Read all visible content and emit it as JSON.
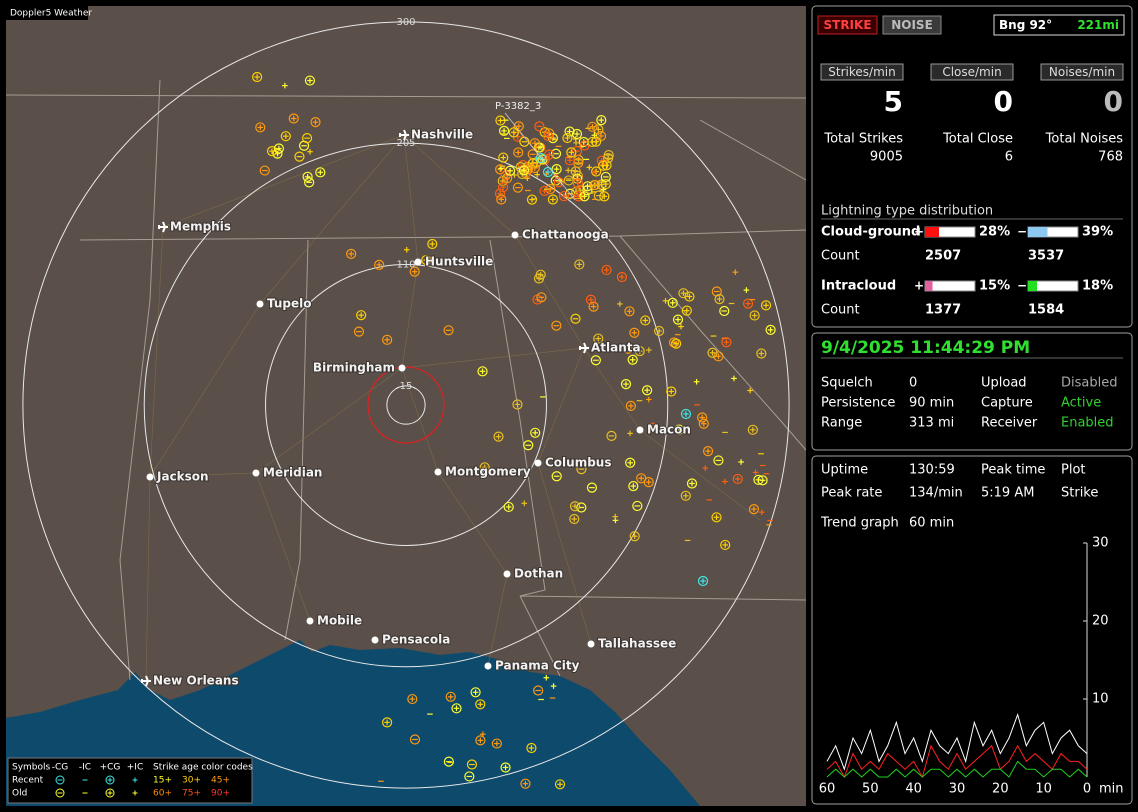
{
  "app_title": "Doppler5 Weather",
  "map": {
    "rings": [
      300,
      205,
      110,
      15
    ],
    "storm_label": "P-3382_3",
    "cities": [
      "Nashville",
      "Memphis",
      "Chattanooga",
      "Huntsville",
      "Tupelo",
      "Birmingham",
      "Atlanta",
      "Macon",
      "Jackson",
      "Meridian",
      "Montgomery",
      "Columbus",
      "Dothan",
      "Mobile",
      "Pensacola",
      "Panama City",
      "Tallahassee",
      "New Orleans"
    ]
  },
  "legend": {
    "symbols_label": "Symbols",
    "symbol_headers": [
      "-CG",
      "-IC",
      "+CG",
      "+IC"
    ],
    "age_label": "Strike age color codes",
    "rows": [
      {
        "label": "Recent",
        "ages": [
          "15+",
          "30+",
          "45+"
        ]
      },
      {
        "label": "Old",
        "ages": [
          "60+",
          "75+",
          "90+"
        ]
      }
    ]
  },
  "status": {
    "buttons": [
      "STRIKE",
      "NOISE"
    ],
    "bearing": "Bng 92°",
    "distance": "221mi"
  },
  "rates": [
    {
      "label": "Strikes/min",
      "value": 5,
      "total_label": "Total Strikes",
      "total": 9005
    },
    {
      "label": "Close/min",
      "value": 0,
      "total_label": "Total Close",
      "total": 6
    },
    {
      "label": "Noises/min",
      "value": 0,
      "total_label": "Total Noises",
      "total": 768
    }
  ],
  "distribution": {
    "title": "Lightning type distribution",
    "count_label": "Count",
    "types": [
      {
        "name": "Cloud-ground",
        "positive": {
          "sign": "+",
          "percent": 28,
          "percent_label": "28%",
          "count": 2507,
          "color": "#ff1010"
        },
        "negative": {
          "sign": "−",
          "percent": 39,
          "percent_label": "39%",
          "count": 3537,
          "color": "#8cc8f0"
        }
      },
      {
        "name": "Intracloud",
        "positive": {
          "sign": "+",
          "percent": 15,
          "percent_label": "15%",
          "count": 1377,
          "color": "#e060a0"
        },
        "negative": {
          "sign": "−",
          "percent": 18,
          "percent_label": "18%",
          "count": 1584,
          "color": "#20e020"
        }
      }
    ]
  },
  "clock": "9/4/2025 11:44:29 PM",
  "settings": [
    [
      {
        "label": "Squelch",
        "value": "0"
      },
      {
        "label": "Upload",
        "value": "Disabled",
        "color": "#a8a8a8"
      }
    ],
    [
      {
        "label": "Persistence",
        "value": "90 min"
      },
      {
        "label": "Capture",
        "value": "Active",
        "color": "#30d030"
      }
    ],
    [
      {
        "label": "Range",
        "value": "313 mi"
      },
      {
        "label": "Receiver",
        "value": "Enabled",
        "color": "#30d030"
      }
    ]
  ],
  "info": {
    "uptime": {
      "label": "Uptime",
      "value": "130:59"
    },
    "peak_rate": {
      "label": "Peak rate",
      "value": "134/min"
    },
    "peak_time": {
      "label": "Peak time",
      "value": "5:19 AM"
    },
    "plot": {
      "label": "Plot",
      "value": "Strike"
    }
  },
  "trend": {
    "label": "Trend graph",
    "period": "60 min",
    "x_label": "min",
    "xlim": [
      60,
      0
    ],
    "xticks": [
      60,
      50,
      40,
      30,
      20,
      10,
      0
    ],
    "ylim": [
      0,
      30
    ],
    "yticks": [
      10,
      20,
      30
    ],
    "x": [
      60,
      58,
      56,
      54,
      52,
      50,
      48,
      46,
      44,
      42,
      40,
      38,
      36,
      34,
      32,
      30,
      28,
      26,
      24,
      22,
      20,
      18,
      16,
      14,
      12,
      10,
      8,
      6,
      4,
      2,
      0
    ],
    "series": [
      {
        "color": "#ffffff",
        "values": [
          2,
          4,
          1,
          5,
          3,
          6,
          2,
          4,
          7,
          3,
          5,
          2,
          6,
          4,
          3,
          5,
          2,
          7,
          4,
          6,
          3,
          5,
          8,
          4,
          6,
          7,
          3,
          5,
          6,
          4,
          3
        ]
      },
      {
        "color": "#ff2020",
        "values": [
          1,
          2,
          0,
          3,
          1,
          2,
          1,
          3,
          2,
          1,
          2,
          0,
          4,
          2,
          1,
          3,
          1,
          2,
          3,
          4,
          1,
          2,
          4,
          2,
          3,
          2,
          1,
          3,
          2,
          2,
          1
        ]
      },
      {
        "color": "#20d020",
        "values": [
          0,
          1,
          0,
          1,
          0,
          1,
          0,
          0,
          1,
          0,
          1,
          0,
          1,
          1,
          0,
          1,
          0,
          1,
          0,
          1,
          1,
          0,
          2,
          1,
          1,
          0,
          1,
          1,
          0,
          1,
          0
        ]
      }
    ]
  }
}
